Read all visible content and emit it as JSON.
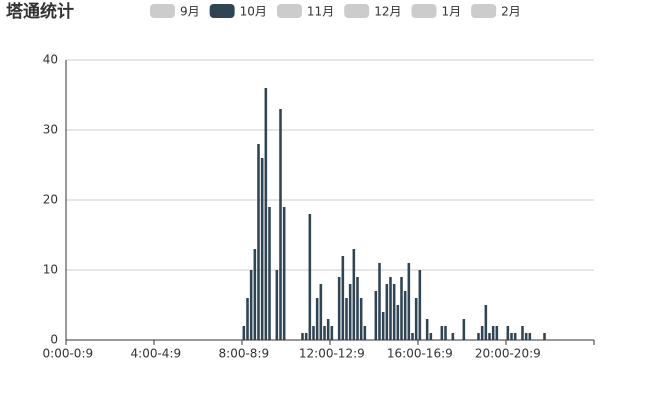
{
  "chart_data": {
    "type": "bar",
    "title": "塔通统计",
    "legend": [
      {
        "name": "9月",
        "color": "#cccccc"
      },
      {
        "name": "10月",
        "color": "#2f4554"
      },
      {
        "name": "11月",
        "color": "#cccccc"
      },
      {
        "name": "12月",
        "color": "#cccccc"
      },
      {
        "name": "1月",
        "color": "#cccccc"
      },
      {
        "name": "2月",
        "color": "#cccccc"
      }
    ],
    "categories": [
      "0:00-0:9",
      null,
      null,
      null,
      null,
      null,
      null,
      null,
      null,
      null,
      null,
      null,
      null,
      null,
      null,
      null,
      null,
      null,
      null,
      null,
      null,
      null,
      null,
      null,
      "4:00-4:9",
      null,
      null,
      null,
      null,
      null,
      null,
      null,
      null,
      null,
      null,
      null,
      null,
      null,
      null,
      null,
      null,
      null,
      null,
      null,
      null,
      null,
      null,
      null,
      "8:00-8:9",
      null,
      null,
      null,
      null,
      null,
      null,
      null,
      null,
      null,
      null,
      null,
      null,
      null,
      null,
      null,
      null,
      null,
      null,
      null,
      null,
      null,
      null,
      null,
      "12:00-12:9",
      null,
      null,
      null,
      null,
      null,
      null,
      null,
      null,
      null,
      null,
      null,
      null,
      null,
      null,
      null,
      null,
      null,
      null,
      null,
      null,
      null,
      null,
      null,
      "16:00-16:9",
      null,
      null,
      null,
      null,
      null,
      null,
      null,
      null,
      null,
      null,
      null,
      null,
      null,
      null,
      null,
      null,
      null,
      null,
      null,
      null,
      null,
      null,
      null,
      "20:00-20:9",
      null,
      null,
      null,
      null,
      null,
      null,
      null,
      null,
      null,
      null,
      null,
      null,
      null,
      null,
      null,
      null,
      null,
      null,
      null,
      null,
      null,
      null,
      null
    ],
    "values": [
      0,
      0,
      0,
      0,
      0,
      0,
      0,
      0,
      0,
      0,
      0,
      0,
      0,
      0,
      0,
      0,
      0,
      0,
      0,
      0,
      0,
      0,
      0,
      0,
      0,
      0,
      0,
      0,
      0,
      0,
      0,
      0,
      0,
      0,
      0,
      0,
      0,
      0,
      0,
      0,
      0,
      0,
      0,
      0,
      0,
      0,
      0,
      0,
      2,
      6,
      10,
      13,
      28,
      26,
      36,
      19,
      0,
      10,
      33,
      19,
      0,
      0,
      0,
      0,
      1,
      1,
      18,
      2,
      6,
      8,
      2,
      3,
      2,
      0,
      9,
      12,
      6,
      8,
      13,
      9,
      6,
      2,
      0,
      0,
      7,
      11,
      4,
      8,
      9,
      8,
      5,
      9,
      7,
      11,
      1,
      6,
      10,
      0,
      3,
      1,
      0,
      0,
      2,
      2,
      0,
      1,
      0,
      0,
      3,
      0,
      0,
      0,
      1,
      2,
      5,
      1,
      2,
      2,
      0,
      0,
      2,
      1,
      1,
      0,
      2,
      1,
      1,
      0,
      0,
      0,
      1,
      0,
      0,
      0,
      0,
      0,
      0,
      0,
      0,
      0,
      0,
      0,
      0,
      0
    ],
    "color": "#2f4554",
    "ylim": [
      0,
      40
    ],
    "yticks": [
      0,
      10,
      20,
      30,
      40
    ],
    "grid": true
  }
}
